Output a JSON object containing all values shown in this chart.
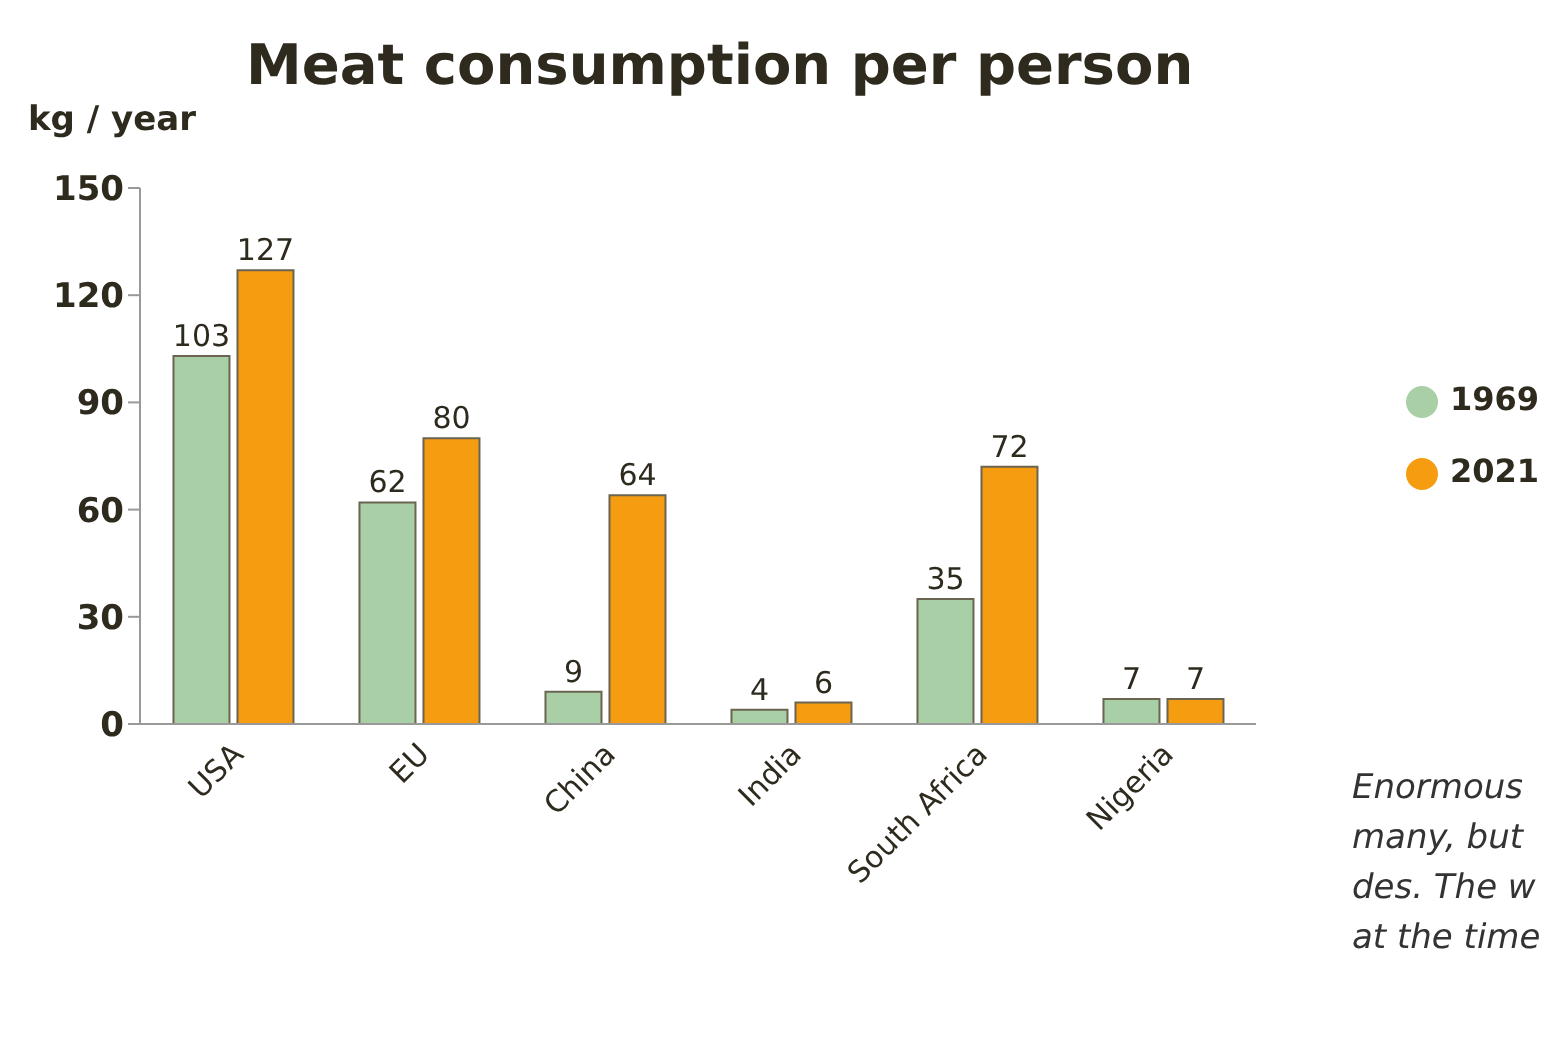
{
  "chart_data": {
    "type": "bar",
    "title": "Meat consumption per person",
    "ylabel": "kg / year",
    "categories": [
      "USA",
      "EU",
      "China",
      "India",
      "South Africa",
      "Nigeria"
    ],
    "series": [
      {
        "name": "1969",
        "color": "#a8cfa6",
        "values": [
          103,
          62,
          9,
          4,
          35,
          7
        ]
      },
      {
        "name": "2021",
        "color": "#f59c10",
        "values": [
          127,
          80,
          64,
          6,
          72,
          7
        ]
      }
    ],
    "ylim": [
      0,
      150
    ],
    "yticks": [
      0,
      30,
      60,
      90,
      120,
      150
    ],
    "legend": "right",
    "data_labels": true,
    "annotations": [
      "Enormous",
      "many, but",
      "des. The w",
      "at the time"
    ]
  }
}
